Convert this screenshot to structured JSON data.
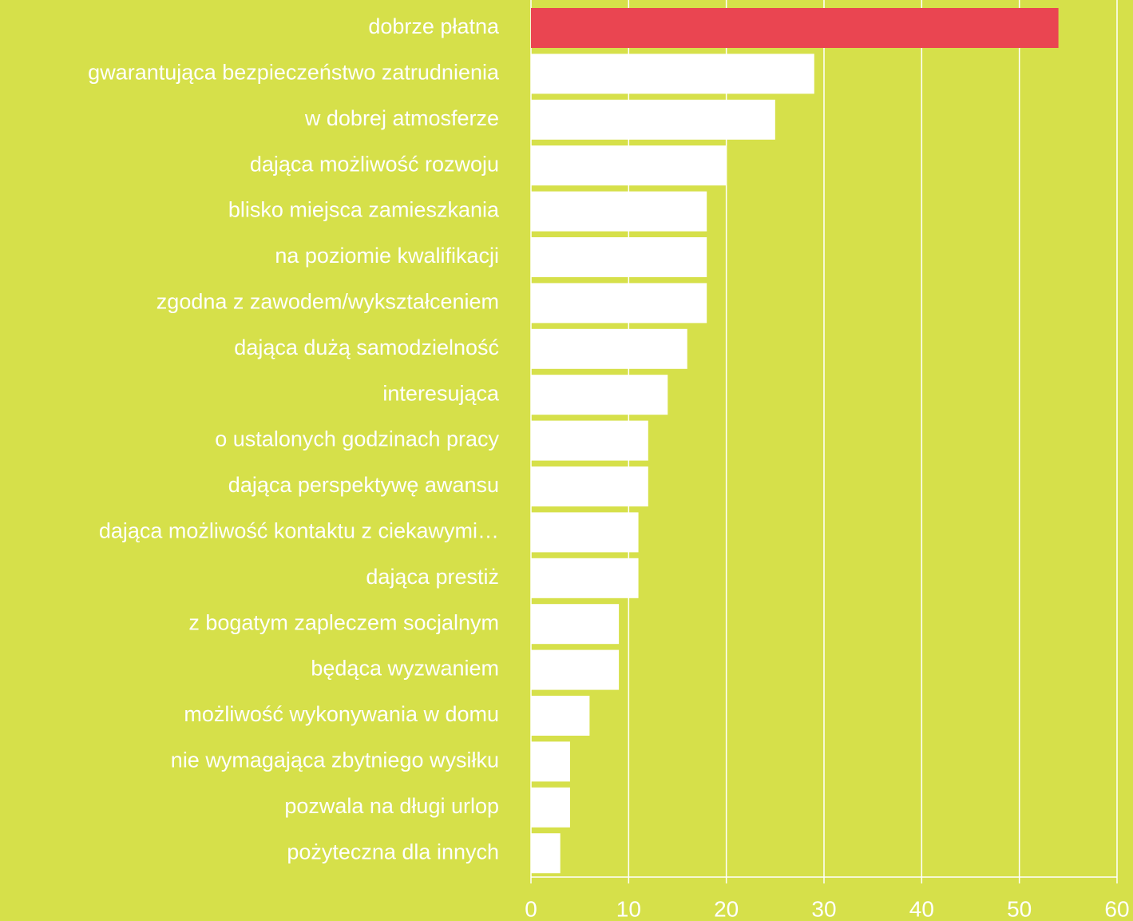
{
  "chart_data": {
    "type": "barh",
    "categories": [
      "dobrze płatna",
      "gwarantująca bezpieczeństwo zatrudnienia",
      "w dobrej atmosferze",
      "dająca możliwość rozwoju",
      "blisko miejsca zamieszkania",
      "na poziomie kwalifikacji",
      "zgodna z zawodem/wykształceniem",
      "dająca dużą samodzielność",
      "interesująca",
      "o ustalonych godzinach pracy",
      "dająca perspektywę awansu",
      "dająca możliwość kontaktu z ciekawymi…",
      "dająca prestiż",
      "z bogatym zapleczem socjalnym",
      "będąca wyzwaniem",
      "możliwość wykonywania w domu",
      "nie wymagająca zbytniego wysiłku",
      "pozwala na długi urlop",
      "pożyteczna dla innych"
    ],
    "values": [
      54,
      29,
      25,
      20,
      18,
      18,
      18,
      16,
      14,
      12,
      12,
      11,
      11,
      9,
      9,
      6,
      4,
      4,
      3
    ],
    "colors": [
      "#ea4551",
      "#ffffff",
      "#ffffff",
      "#ffffff",
      "#ffffff",
      "#ffffff",
      "#ffffff",
      "#ffffff",
      "#ffffff",
      "#ffffff",
      "#ffffff",
      "#ffffff",
      "#ffffff",
      "#ffffff",
      "#ffffff",
      "#ffffff",
      "#ffffff",
      "#ffffff",
      "#ffffff"
    ],
    "xlim": [
      0,
      60
    ],
    "xticks": [
      0,
      10,
      20,
      30,
      40,
      50,
      60
    ],
    "grid": true
  }
}
